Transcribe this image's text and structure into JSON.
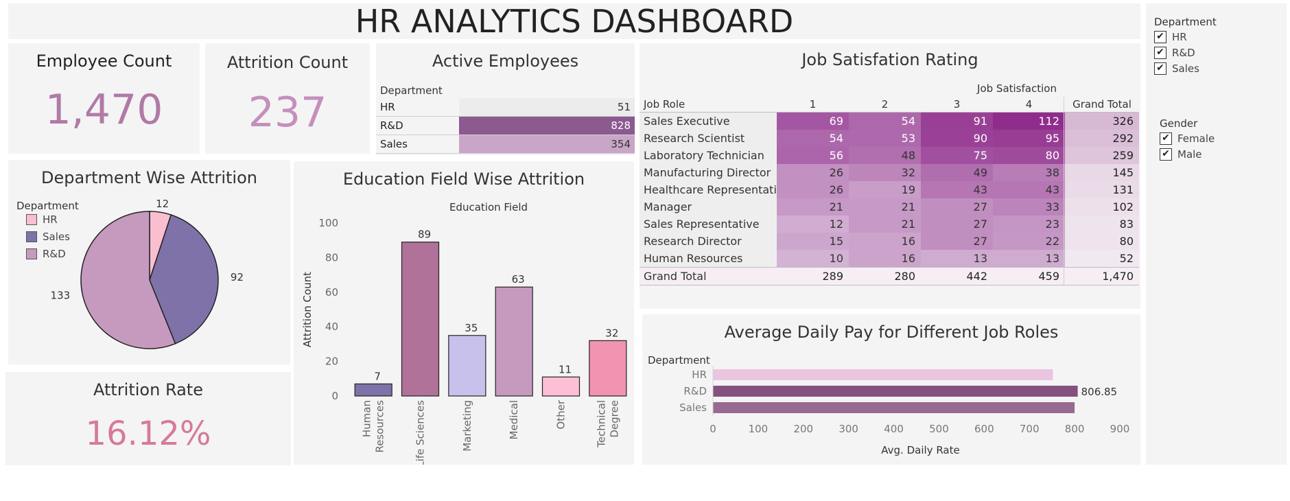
{
  "header": {
    "title": "HR ANALYTICS DASHBOARD"
  },
  "kpis": {
    "employee_count": {
      "label": "Employee Count",
      "value": "1,470"
    },
    "attrition_count": {
      "label": "Attrition Count",
      "value": "237"
    },
    "attrition_rate": {
      "label": "Attrition Rate",
      "value": "16.12%"
    }
  },
  "active_employees": {
    "title": "Active Employees",
    "column_header": "Department",
    "rows": [
      {
        "label": "HR",
        "value": "51",
        "num": 51,
        "color": "#ececec"
      },
      {
        "label": "R&D",
        "value": "828",
        "num": 828,
        "color": "#8b5a8e"
      },
      {
        "label": "Sales",
        "value": "354",
        "num": 354,
        "color": "#c9a6c7"
      }
    ]
  },
  "job_satisfaction": {
    "title": "Job Satisfation Rating",
    "column_group": "Job Satisfaction",
    "row_header": "Job Role",
    "columns": [
      "1",
      "2",
      "3",
      "4"
    ],
    "total_header": "Grand Total",
    "rows": [
      {
        "role": "Sales Executive",
        "values": [
          "69",
          "54",
          "91",
          "112"
        ],
        "total": "326"
      },
      {
        "role": "Research Scientist",
        "values": [
          "54",
          "53",
          "90",
          "95"
        ],
        "total": "292"
      },
      {
        "role": "Laboratory Technician",
        "values": [
          "56",
          "48",
          "75",
          "80"
        ],
        "total": "259"
      },
      {
        "role": "Manufacturing Director",
        "values": [
          "26",
          "32",
          "49",
          "38"
        ],
        "total": "145"
      },
      {
        "role": "Healthcare Representative",
        "values": [
          "26",
          "19",
          "43",
          "43"
        ],
        "total": "131"
      },
      {
        "role": "Manager",
        "values": [
          "21",
          "21",
          "27",
          "33"
        ],
        "total": "102"
      },
      {
        "role": "Sales Representative",
        "values": [
          "12",
          "21",
          "27",
          "23"
        ],
        "total": "83"
      },
      {
        "role": "Research Director",
        "values": [
          "15",
          "16",
          "27",
          "22"
        ],
        "total": "80"
      },
      {
        "role": "Human Resources",
        "values": [
          "10",
          "16",
          "13",
          "13"
        ],
        "total": "52"
      }
    ],
    "grand_total": {
      "label": "Grand Total",
      "values": [
        "289",
        "280",
        "442",
        "459"
      ],
      "total": "1,470"
    }
  },
  "filters": {
    "department": {
      "label": "Department",
      "options": [
        "HR",
        "R&D",
        "Sales"
      ],
      "check": "✔"
    },
    "gender": {
      "label": "Gender",
      "options": [
        "Female",
        "Male"
      ],
      "check": "✔"
    }
  },
  "chart_data": [
    {
      "type": "pie",
      "title": "Department Wise Attrition",
      "legend_title": "Department",
      "legend_placement": "top-left",
      "categories": [
        "HR",
        "Sales",
        "R&D"
      ],
      "values": [
        12,
        92,
        133
      ],
      "labels": [
        "12",
        "92",
        "133"
      ],
      "colors": [
        "#f9bfd0",
        "#7e72a8",
        "#c69abf"
      ]
    },
    {
      "type": "bar",
      "title": "Education Field Wise Attrition",
      "subtitle": "Education Field",
      "ylabel": "Attrition Count",
      "categories": [
        "Human Resources",
        "Life Sciences",
        "Marketing",
        "Medical",
        "Other",
        "Technical Degree"
      ],
      "category_lines": [
        [
          "Human",
          "Resources"
        ],
        [
          "Life Sciences"
        ],
        [
          "Marketing"
        ],
        [
          "Medical"
        ],
        [
          "Other"
        ],
        [
          "Technical",
          "Degree"
        ]
      ],
      "values": [
        7,
        89,
        35,
        63,
        11,
        32
      ],
      "labels": [
        "7",
        "89",
        "35",
        "63",
        "11",
        "32"
      ],
      "colors": [
        "#7e72a8",
        "#b07298",
        "#c7c1ec",
        "#c69abf",
        "#fdbfd6",
        "#f294b1"
      ],
      "ylim": [
        0,
        100
      ],
      "yticks": [
        "0",
        "20",
        "40",
        "60",
        "80",
        "100"
      ],
      "ytick_values": [
        0,
        20,
        40,
        60,
        80,
        100
      ],
      "grid": false
    },
    {
      "type": "bar",
      "orientation": "horizontal",
      "title": "Average Daily Pay for Different Job Roles",
      "legend_title": "Department",
      "xlabel": "Avg. Daily Rate",
      "categories": [
        "HR",
        "R&D",
        "Sales"
      ],
      "values": [
        752,
        806.85,
        800
      ],
      "labels": [
        "",
        "806.85",
        ""
      ],
      "colors": [
        "#ebc4e0",
        "#84517e",
        "#976a92"
      ],
      "xlim": [
        0,
        900
      ],
      "xticks": [
        "0",
        "100",
        "200",
        "300",
        "400",
        "500",
        "600",
        "700",
        "800",
        "900"
      ],
      "xtick_values": [
        0,
        100,
        200,
        300,
        400,
        500,
        600,
        700,
        800,
        900
      ]
    }
  ]
}
